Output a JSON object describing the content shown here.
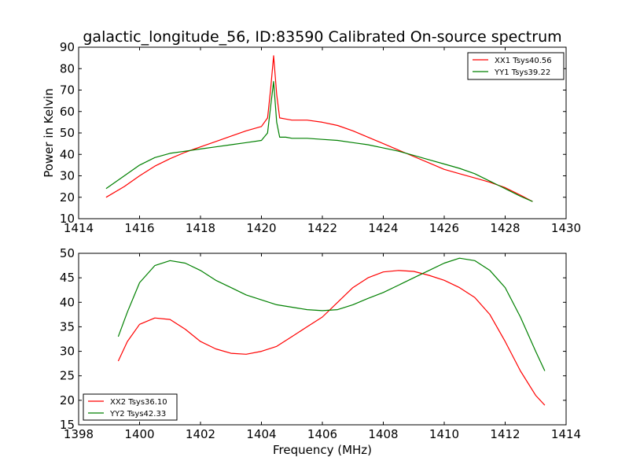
{
  "title": "galactic_longitude_56, ID:83590 Calibrated On-source spectrum",
  "ylabel": "Power in Kelvin",
  "xlabel": "Frequency (MHz)",
  "colors": {
    "red": "#ff0000",
    "green": "#008000"
  },
  "chart_data": [
    {
      "type": "line",
      "title": "galactic_longitude_56, ID:83590 Calibrated On-source spectrum",
      "ylabel": "Power in Kelvin",
      "xlabel": "",
      "xlim": [
        1414,
        1430
      ],
      "ylim": [
        10,
        90
      ],
      "xticks": [
        "1414",
        "1416",
        "1418",
        "1420",
        "1422",
        "1424",
        "1426",
        "1428",
        "1430"
      ],
      "yticks": [
        "10",
        "20",
        "30",
        "40",
        "50",
        "60",
        "70",
        "80",
        "90"
      ],
      "grid": false,
      "legend_position": "top-right",
      "series": [
        {
          "name": "XX1 Tsys40.56",
          "color": "#ff0000",
          "x": [
            1414.9,
            1415.5,
            1416.0,
            1416.5,
            1417.0,
            1417.5,
            1418.0,
            1418.5,
            1419.0,
            1419.5,
            1420.0,
            1420.2,
            1420.3,
            1420.4,
            1420.5,
            1420.6,
            1420.8,
            1421.0,
            1421.5,
            1422.0,
            1422.5,
            1423.0,
            1423.5,
            1424.0,
            1424.5,
            1425.0,
            1425.5,
            1426.0,
            1426.5,
            1427.0,
            1427.5,
            1428.0,
            1428.5,
            1428.9
          ],
          "y": [
            20,
            25,
            30,
            34.5,
            38,
            41,
            43.5,
            46,
            48.5,
            51,
            53,
            57,
            70,
            86,
            68,
            57,
            56.5,
            56,
            56,
            55,
            53.5,
            51,
            48,
            45,
            42,
            39,
            36,
            33,
            31,
            29,
            27,
            24.5,
            21,
            18
          ]
        },
        {
          "name": "YY1 Tsys39.22",
          "color": "#008000",
          "x": [
            1414.9,
            1415.5,
            1416.0,
            1416.5,
            1417.0,
            1417.5,
            1418.0,
            1418.5,
            1419.0,
            1419.5,
            1420.0,
            1420.2,
            1420.3,
            1420.4,
            1420.5,
            1420.6,
            1420.8,
            1421.0,
            1421.5,
            1422.0,
            1422.5,
            1423.0,
            1423.5,
            1424.0,
            1424.5,
            1425.0,
            1425.5,
            1426.0,
            1426.5,
            1427.0,
            1427.5,
            1428.0,
            1428.5,
            1428.9
          ],
          "y": [
            24,
            30,
            35,
            38.5,
            40.5,
            41.5,
            42.5,
            43.5,
            44.5,
            45.5,
            46.5,
            50,
            62,
            74,
            55,
            48,
            48,
            47.5,
            47.5,
            47,
            46.5,
            45.5,
            44.5,
            43,
            41.5,
            39.5,
            37.5,
            35.5,
            33.5,
            31,
            27.5,
            24,
            20.5,
            18
          ]
        }
      ]
    },
    {
      "type": "line",
      "title": "",
      "ylabel": "",
      "xlabel": "Frequency (MHz)",
      "xlim": [
        1398,
        1414
      ],
      "ylim": [
        15,
        50
      ],
      "xticks": [
        "1398",
        "1400",
        "1402",
        "1404",
        "1406",
        "1408",
        "1410",
        "1412",
        "1414"
      ],
      "yticks": [
        "15",
        "20",
        "25",
        "30",
        "35",
        "40",
        "45",
        "50"
      ],
      "grid": false,
      "legend_position": "bottom-left",
      "series": [
        {
          "name": "XX2 Tsys36.10",
          "color": "#ff0000",
          "x": [
            1399.3,
            1399.6,
            1400.0,
            1400.5,
            1401.0,
            1401.5,
            1402.0,
            1402.5,
            1403.0,
            1403.5,
            1404.0,
            1404.5,
            1405.0,
            1405.5,
            1406.0,
            1406.5,
            1407.0,
            1407.5,
            1408.0,
            1408.5,
            1409.0,
            1409.5,
            1410.0,
            1410.5,
            1411.0,
            1411.5,
            1412.0,
            1412.5,
            1413.0,
            1413.3
          ],
          "y": [
            28,
            32,
            35.5,
            36.8,
            36.5,
            34.5,
            32,
            30.5,
            29.6,
            29.4,
            30,
            31,
            33,
            35,
            37,
            40,
            43,
            45,
            46.2,
            46.5,
            46.3,
            45.5,
            44.5,
            43,
            41,
            37.5,
            32,
            26,
            21,
            19
          ]
        },
        {
          "name": "YY2 Tsys42.33",
          "color": "#008000",
          "x": [
            1399.3,
            1399.6,
            1400.0,
            1400.5,
            1401.0,
            1401.5,
            1402.0,
            1402.5,
            1403.0,
            1403.5,
            1404.0,
            1404.5,
            1405.0,
            1405.5,
            1406.0,
            1406.5,
            1407.0,
            1407.5,
            1408.0,
            1408.5,
            1409.0,
            1409.5,
            1410.0,
            1410.5,
            1411.0,
            1411.5,
            1412.0,
            1412.5,
            1413.0,
            1413.3
          ],
          "y": [
            33,
            38,
            44,
            47.5,
            48.5,
            48,
            46.5,
            44.5,
            43,
            41.5,
            40.5,
            39.5,
            39,
            38.5,
            38.3,
            38.5,
            39.5,
            40.8,
            42,
            43.5,
            45,
            46.5,
            48,
            49,
            48.5,
            46.5,
            43,
            37,
            30,
            26
          ]
        }
      ]
    }
  ]
}
